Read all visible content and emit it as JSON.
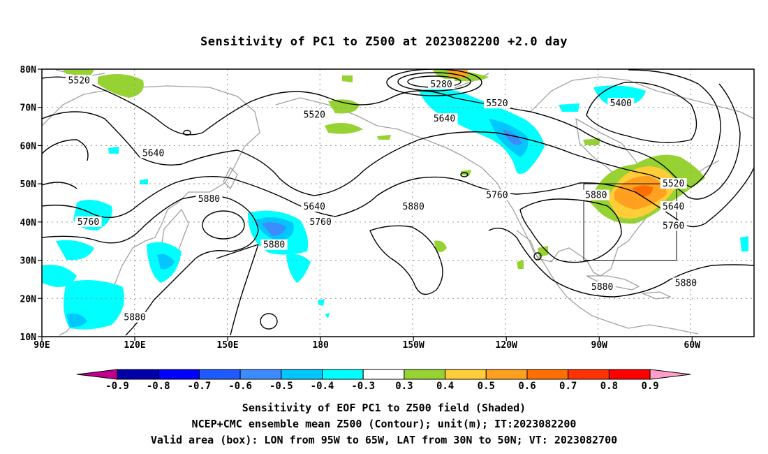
{
  "title": "Sensitivity of PC1 to Z500 at 2023082200 +2.0 day",
  "map": {
    "lon_labels": [
      "90E",
      "120E",
      "150E",
      "180",
      "150W",
      "120W",
      "90W",
      "60W"
    ],
    "lat_labels": [
      "80N",
      "70N",
      "60N",
      "50N",
      "40N",
      "30N",
      "20N",
      "10N"
    ],
    "contour_labels": [
      {
        "text": "5520",
        "lon": 102,
        "lat": 77
      },
      {
        "text": "5280",
        "lon": -141,
        "lat": 76
      },
      {
        "text": "5520",
        "lon": -123,
        "lat": 71
      },
      {
        "text": "5400",
        "lon": -83,
        "lat": 71
      },
      {
        "text": "5520",
        "lon": 178,
        "lat": 68
      },
      {
        "text": "5640",
        "lon": -140,
        "lat": 67
      },
      {
        "text": "5640",
        "lon": 126,
        "lat": 58
      },
      {
        "text": "5880",
        "lon": 144,
        "lat": 46
      },
      {
        "text": "5520",
        "lon": -66,
        "lat": 50
      },
      {
        "text": "5760",
        "lon": -123,
        "lat": 47
      },
      {
        "text": "5880",
        "lon": -91,
        "lat": 47
      },
      {
        "text": "5640",
        "lon": 178,
        "lat": 44
      },
      {
        "text": "5880",
        "lon": -150,
        "lat": 44
      },
      {
        "text": "5640",
        "lon": -66,
        "lat": 44
      },
      {
        "text": "5760",
        "lon": 105,
        "lat": 40
      },
      {
        "text": "5760",
        "lon": 180,
        "lat": 40
      },
      {
        "text": "5760",
        "lon": -66,
        "lat": 39
      },
      {
        "text": "5880",
        "lon": 165,
        "lat": 34
      },
      {
        "text": "5880",
        "lon": -62,
        "lat": 24
      },
      {
        "text": "5880",
        "lon": -89,
        "lat": 23
      },
      {
        "text": "5880",
        "lon": 120,
        "lat": 15
      }
    ],
    "valid_box": {
      "lon_west": -95,
      "lon_east": -65,
      "lat_south": 30,
      "lat_north": 50
    }
  },
  "colorbar": {
    "labels": [
      "-0.9",
      "-0.8",
      "-0.7",
      "-0.6",
      "-0.5",
      "-0.4",
      "-0.3",
      "0.3",
      "0.4",
      "0.5",
      "0.6",
      "0.7",
      "0.8",
      "0.9"
    ],
    "colors": [
      "#0000a8",
      "#0000ff",
      "#1e5aff",
      "#3c8cff",
      "#00c8ff",
      "#00ffff",
      "#ffffff",
      "#96d232",
      "#ffcd37",
      "#ffa01e",
      "#ff6e00",
      "#ff3200",
      "#ff0000"
    ],
    "low_color": "#c0008c",
    "high_color": "#ff9ec8"
  },
  "captions": [
    "Sensitivity of EOF PC1 to Z500 field (Shaded)",
    "NCEP+CMC ensemble mean Z500 (Contour); unit(m); IT:2023082200",
    "Valid area (box): LON from 95W to 65W, LAT from 30N to 50N; VT: 2023082700"
  ]
}
